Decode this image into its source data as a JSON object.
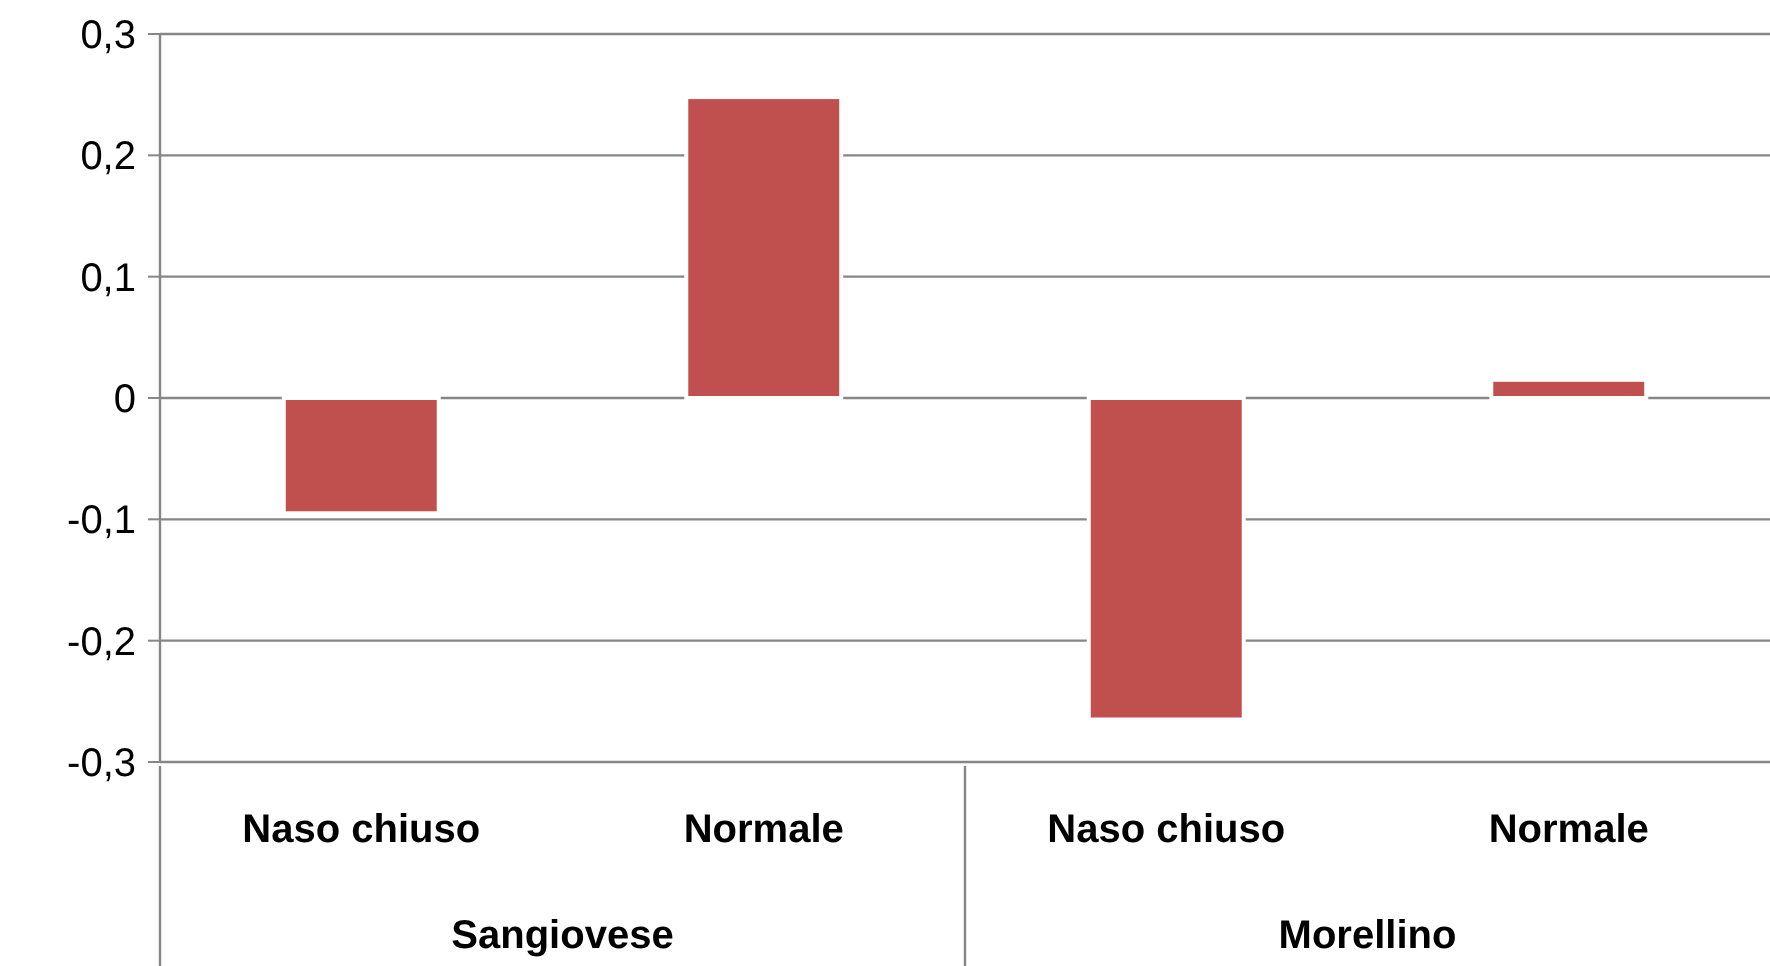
{
  "chart_data": {
    "type": "bar",
    "categories": [
      "Naso chiuso",
      "Normale",
      "Naso chiuso",
      "Normale"
    ],
    "values": [
      -0.095,
      0.248,
      -0.265,
      0.015
    ],
    "color": "#c0504d",
    "ylim": [
      -0.3,
      0.3
    ],
    "yticks": [
      {
        "value": -0.3,
        "label": "-0,3"
      },
      {
        "value": -0.2,
        "label": "-0,2"
      },
      {
        "value": -0.1,
        "label": "-0,1"
      },
      {
        "value": 0,
        "label": "0"
      },
      {
        "value": 0.1,
        "label": "0,1"
      },
      {
        "value": 0.2,
        "label": "0,2"
      },
      {
        "value": 0.3,
        "label": "0,3"
      }
    ],
    "grid": "y",
    "annotations": [
      "Sangiovese",
      "Morellino"
    ]
  }
}
